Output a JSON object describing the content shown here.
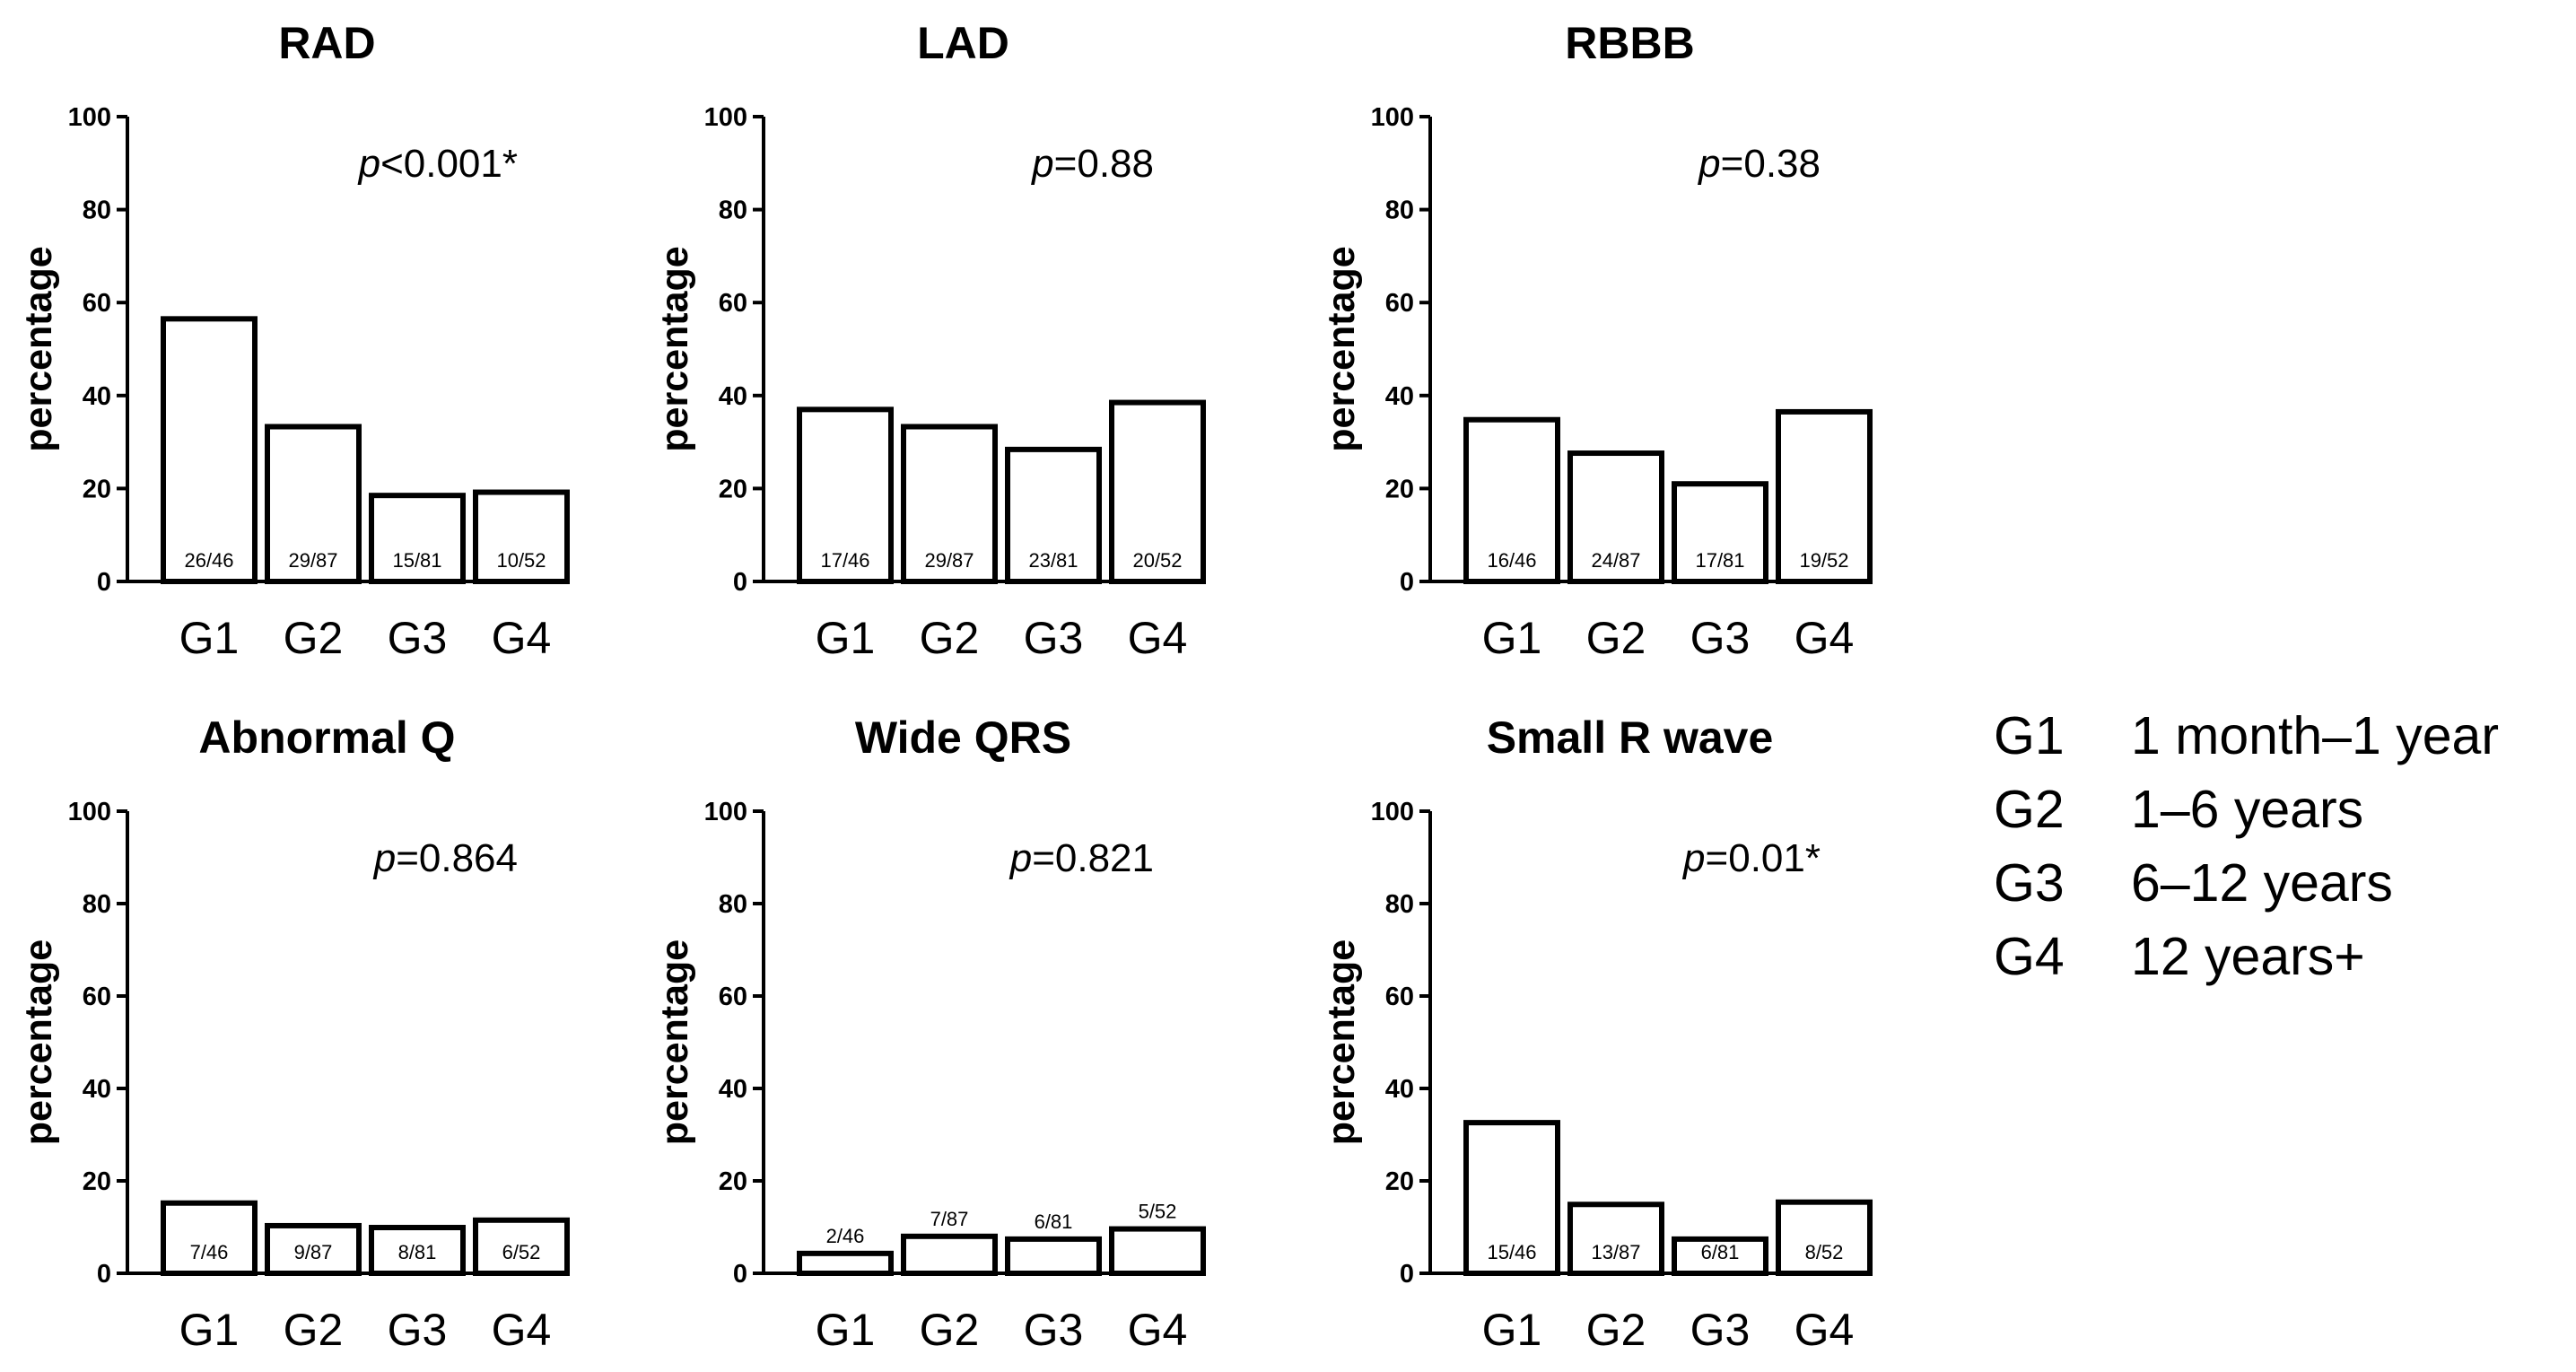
{
  "legend": [
    {
      "code": "G1",
      "label": "1 month–1 year"
    },
    {
      "code": "G2",
      "label": "1–6 years"
    },
    {
      "code": "G3",
      "label": "6–12 years"
    },
    {
      "code": "G4",
      "label": "12 years+"
    }
  ],
  "chart_data": [
    {
      "type": "bar",
      "title": "RAD",
      "ylabel": "percentage",
      "xlabel": "",
      "ylim": [
        0,
        100
      ],
      "yticks": [
        0,
        20,
        40,
        60,
        80,
        100
      ],
      "categories": [
        "G1",
        "G2",
        "G3",
        "G4"
      ],
      "values": [
        56.5,
        33.3,
        18.5,
        19.2
      ],
      "fractions": [
        "26/46",
        "29/87",
        "15/81",
        "10/52"
      ],
      "p_prefix": "p",
      "p_text": "<0.001*",
      "legend": "none"
    },
    {
      "type": "bar",
      "title": "LAD",
      "ylabel": "percentage",
      "xlabel": "",
      "ylim": [
        0,
        100
      ],
      "yticks": [
        0,
        20,
        40,
        60,
        80,
        100
      ],
      "categories": [
        "G1",
        "G2",
        "G3",
        "G4"
      ],
      "values": [
        37.0,
        33.3,
        28.4,
        38.5
      ],
      "fractions": [
        "17/46",
        "29/87",
        "23/81",
        "20/52"
      ],
      "p_prefix": "p",
      "p_text": "=0.88",
      "legend": "none"
    },
    {
      "type": "bar",
      "title": "RBBB",
      "ylabel": "percentage",
      "xlabel": "",
      "ylim": [
        0,
        100
      ],
      "yticks": [
        0,
        20,
        40,
        60,
        80,
        100
      ],
      "categories": [
        "G1",
        "G2",
        "G3",
        "G4"
      ],
      "values": [
        34.8,
        27.6,
        21.0,
        36.5
      ],
      "fractions": [
        "16/46",
        "24/87",
        "17/81",
        "19/52"
      ],
      "p_prefix": "p",
      "p_text": "=0.38",
      "legend": "none"
    },
    {
      "type": "bar",
      "title": "Abnormal Q",
      "ylabel": "percentage",
      "xlabel": "",
      "ylim": [
        0,
        100
      ],
      "yticks": [
        0,
        20,
        40,
        60,
        80,
        100
      ],
      "categories": [
        "G1",
        "G2",
        "G3",
        "G4"
      ],
      "values": [
        15.2,
        10.3,
        9.9,
        11.5
      ],
      "fractions": [
        "7/46",
        "9/87",
        "8/81",
        "6/52"
      ],
      "p_prefix": "p",
      "p_text": "=0.864",
      "legend": "none"
    },
    {
      "type": "bar",
      "title": "Wide QRS",
      "ylabel": "percentage",
      "xlabel": "",
      "ylim": [
        0,
        100
      ],
      "yticks": [
        0,
        20,
        40,
        60,
        80,
        100
      ],
      "categories": [
        "G1",
        "G2",
        "G3",
        "G4"
      ],
      "values": [
        4.3,
        8.0,
        7.4,
        9.6
      ],
      "fractions": [
        "2/46",
        "7/87",
        "6/81",
        "5/52"
      ],
      "fractions_above": true,
      "p_prefix": "p",
      "p_text": "=0.821",
      "legend": "none"
    },
    {
      "type": "bar",
      "title": "Small R wave",
      "ylabel": "percentage",
      "xlabel": "",
      "ylim": [
        0,
        100
      ],
      "yticks": [
        0,
        20,
        40,
        60,
        80,
        100
      ],
      "categories": [
        "G1",
        "G2",
        "G3",
        "G4"
      ],
      "values": [
        32.6,
        14.9,
        7.4,
        15.4
      ],
      "fractions": [
        "15/46",
        "13/87",
        "6/81",
        "8/52"
      ],
      "p_prefix": "p",
      "p_text": "=0.01*",
      "legend": "none"
    }
  ]
}
